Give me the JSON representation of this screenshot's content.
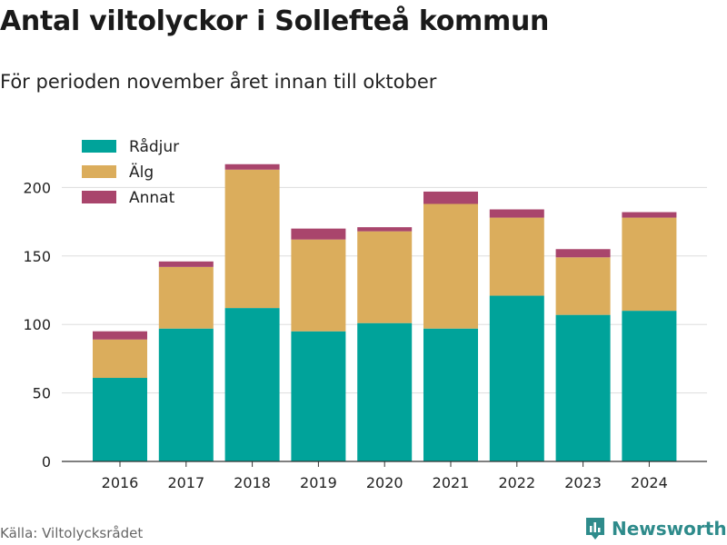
{
  "header": {
    "title": "Antal viltolyckor i Sollefteå kommun",
    "subtitle": "För perioden november året innan till oktober"
  },
  "footer": {
    "source": "Källa: Viltolycksrådet",
    "brand": "Newsworthy",
    "brand_icon": "bar-chart-icon"
  },
  "colors": {
    "radjur": "#00a39a",
    "alg": "#dbad5c",
    "annat": "#a9456c",
    "grid": "#dddddd",
    "brand": "#2e8b8b"
  },
  "chart_data": {
    "type": "bar",
    "stacked": true,
    "categories": [
      "2016",
      "2017",
      "2018",
      "2019",
      "2020",
      "2021",
      "2022",
      "2023",
      "2024"
    ],
    "series": [
      {
        "name": "Rådjur",
        "values": [
          61,
          97,
          112,
          95,
          101,
          97,
          121,
          107,
          110
        ]
      },
      {
        "name": "Älg",
        "values": [
          28,
          45,
          101,
          67,
          67,
          91,
          57,
          42,
          68
        ]
      },
      {
        "name": "Annat",
        "values": [
          6,
          4,
          4,
          8,
          3,
          9,
          6,
          6,
          4
        ]
      }
    ],
    "ylim": [
      0,
      220
    ],
    "yticks": [
      0,
      50,
      100,
      150,
      200
    ],
    "grid": true,
    "legend": "top-left"
  }
}
